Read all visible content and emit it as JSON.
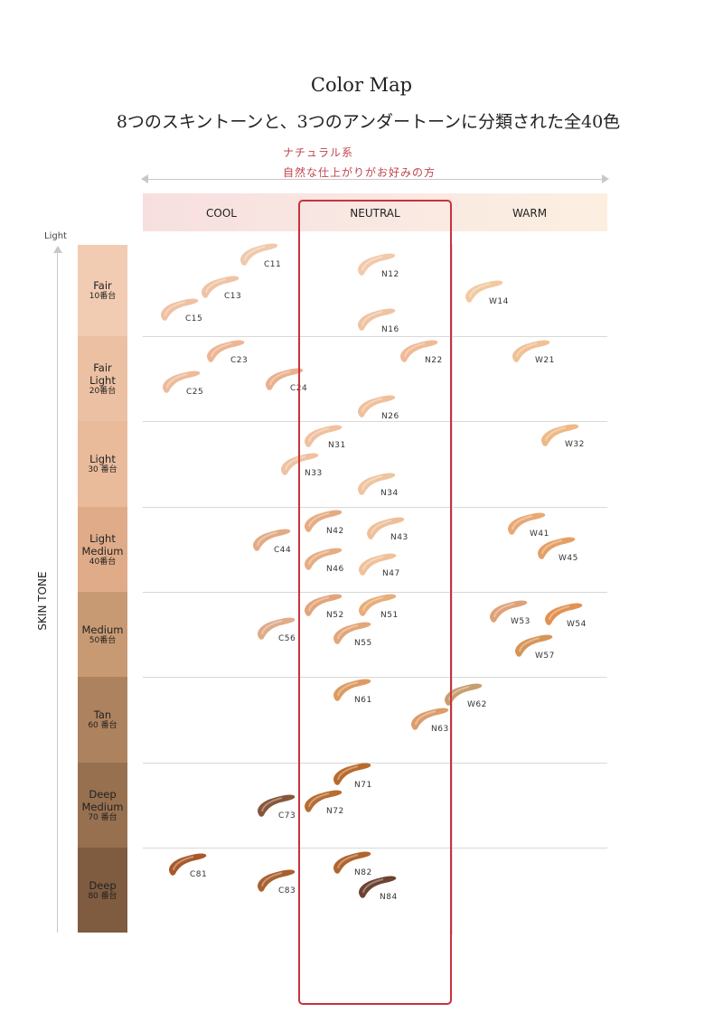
{
  "title": "Color Map",
  "subtitle": "8つのスキントーンと、3つのアンダートーンに分類された全40色",
  "natural": {
    "line1": "ナチュラル系",
    "line2": "自然な仕上がりがお好みの方"
  },
  "undertones": [
    "COOL",
    "NEUTRAL",
    "WARM"
  ],
  "axis": {
    "top_label": "Light",
    "title": "SKIN TONE"
  },
  "colors": {
    "highlight_box": "#c8323c",
    "annotation_text": "#c0464e"
  },
  "skin_tones": [
    {
      "name": "Fair",
      "range": "10番台",
      "color": "#f1ccb2"
    },
    {
      "name": "Fair\nLight",
      "range": "20番台",
      "color": "#ecc0a2"
    },
    {
      "name": "Light",
      "range": "30 番台",
      "color": "#e9bb9b"
    },
    {
      "name": "Light\nMedium",
      "range": "40番台",
      "color": "#dfab88"
    },
    {
      "name": "Medium",
      "range": "50番台",
      "color": "#c89a73"
    },
    {
      "name": "Tan",
      "range": "60 番台",
      "color": "#ad825e"
    },
    {
      "name": "Deep\nMedium",
      "range": "70 番台",
      "color": "#97704f"
    },
    {
      "name": "Deep",
      "range": "80 番台",
      "color": "#7f5b40"
    }
  ],
  "shades": [
    {
      "code": "C11",
      "color": "#f0c9ad"
    },
    {
      "code": "C13",
      "color": "#efc3a4"
    },
    {
      "code": "C15",
      "color": "#efc1a2"
    },
    {
      "code": "N12",
      "color": "#f2caab"
    },
    {
      "code": "N16",
      "color": "#efc3a2"
    },
    {
      "code": "W14",
      "color": "#f1caa2"
    },
    {
      "code": "C23",
      "color": "#eeb593"
    },
    {
      "code": "C25",
      "color": "#eebb9b"
    },
    {
      "code": "C24",
      "color": "#eab08d"
    },
    {
      "code": "N22",
      "color": "#efba96"
    },
    {
      "code": "W21",
      "color": "#f0c096"
    },
    {
      "code": "N26",
      "color": "#efc09c"
    },
    {
      "code": "N31",
      "color": "#f0c09f"
    },
    {
      "code": "N33",
      "color": "#efc1a0"
    },
    {
      "code": "N34",
      "color": "#efc49f"
    },
    {
      "code": "W32",
      "color": "#eeb985"
    },
    {
      "code": "C44",
      "color": "#e2ab85"
    },
    {
      "code": "N42",
      "color": "#e7ab80"
    },
    {
      "code": "N43",
      "color": "#eebf98"
    },
    {
      "code": "N46",
      "color": "#e6ad84"
    },
    {
      "code": "N47",
      "color": "#f0c198"
    },
    {
      "code": "W41",
      "color": "#e8a874"
    },
    {
      "code": "W45",
      "color": "#e4a064"
    },
    {
      "code": "C56",
      "color": "#dfab89"
    },
    {
      "code": "N52",
      "color": "#e2a57a"
    },
    {
      "code": "N51",
      "color": "#e9ad79"
    },
    {
      "code": "N55",
      "color": "#e3a679"
    },
    {
      "code": "W53",
      "color": "#dfa178"
    },
    {
      "code": "W54",
      "color": "#e29153"
    },
    {
      "code": "W57",
      "color": "#d69558"
    },
    {
      "code": "N61",
      "color": "#de9a62"
    },
    {
      "code": "N63",
      "color": "#dc9c6c"
    },
    {
      "code": "W62",
      "color": "#c79e70"
    },
    {
      "code": "N71",
      "color": "#b96a2c"
    },
    {
      "code": "N72",
      "color": "#b86d31"
    },
    {
      "code": "C73",
      "color": "#86553a"
    },
    {
      "code": "C81",
      "color": "#a8592a"
    },
    {
      "code": "C83",
      "color": "#a9602f"
    },
    {
      "code": "N82",
      "color": "#b0652e"
    },
    {
      "code": "N84",
      "color": "#6c4231"
    }
  ]
}
